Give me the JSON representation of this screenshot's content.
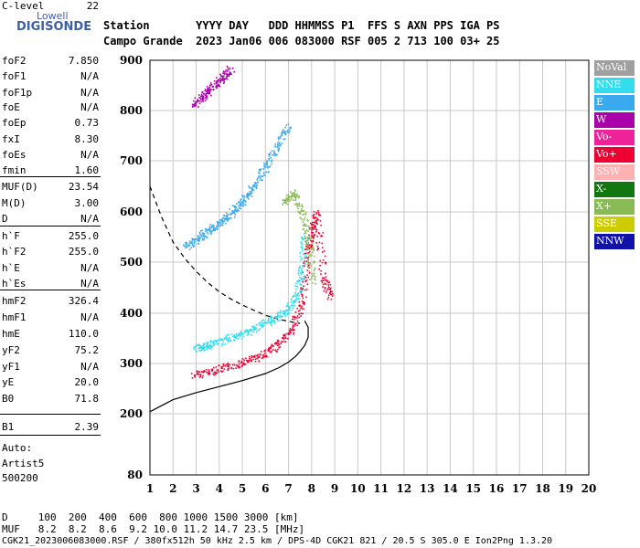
{
  "logo": {
    "top": "Lowell",
    "main": "DIGISONDE"
  },
  "header": {
    "row1": "Station       YYYY DAY   DDD HHMMSS P1  FFS S AXN PPS IGA PS",
    "row2": "Campo Grande  2023 Jan06 006 083000 RSF 005 2 713 100 03+ 25"
  },
  "params": [
    {
      "k": "foF2",
      "v": "7.850"
    },
    {
      "k": "foF1",
      "v": "N/A"
    },
    {
      "k": "foF1p",
      "v": "N/A"
    },
    {
      "k": "foE",
      "v": "N/A"
    },
    {
      "k": "foEp",
      "v": "0.73"
    },
    {
      "k": "fxI",
      "v": "8.30"
    },
    {
      "k": "foEs",
      "v": "N/A"
    },
    {
      "k": "fmin",
      "v": "1.60"
    },
    {
      "k": "MUF(D)",
      "v": "23.54"
    },
    {
      "k": "M(D)",
      "v": "3.00"
    },
    {
      "k": "D",
      "v": "N/A"
    },
    {
      "k": "h`F",
      "v": "255.0"
    },
    {
      "k": "h`F2",
      "v": "255.0"
    },
    {
      "k": "h`E",
      "v": "N/A"
    },
    {
      "k": "h`Es",
      "v": "N/A"
    },
    {
      "k": "hmF2",
      "v": "326.4"
    },
    {
      "k": "hmF1",
      "v": "N/A"
    },
    {
      "k": "hmE",
      "v": "110.0"
    },
    {
      "k": "yF2",
      "v": "75.2"
    },
    {
      "k": "yF1",
      "v": "N/A"
    },
    {
      "k": "yE",
      "v": "20.0"
    },
    {
      "k": "B0",
      "v": "71.8"
    },
    {
      "k": "B1",
      "v": "2.39"
    },
    {
      "k": "C-level",
      "v": "22"
    }
  ],
  "autoscale": [
    "Auto:",
    "Artist5",
    "500200"
  ],
  "legend": [
    {
      "label": "NoVal",
      "color": "#a0a0a0"
    },
    {
      "label": "NNE",
      "color": "#33ddee"
    },
    {
      "label": "E",
      "color": "#3aaaee"
    },
    {
      "label": "W",
      "color": "#aa00aa"
    },
    {
      "label": "Vo-",
      "color": "#ee2299"
    },
    {
      "label": "Vo+",
      "color": "#ee0033"
    },
    {
      "label": "SSW",
      "color": "#ffb0b0"
    },
    {
      "label": "X-",
      "color": "#117711"
    },
    {
      "label": "X+",
      "color": "#88bb55"
    },
    {
      "label": "SSE",
      "color": "#cccc00"
    },
    {
      "label": "NNW",
      "color": "#1111aa"
    }
  ],
  "footer": {
    "line1": "D     100  200  400  600  800 1000 1500 3000 [km]",
    "line2": "MUF   8.2  8.2  8.6  9.2 10.0 11.2 14.7 23.5 [MHz]",
    "line3": "CGK21_2023006083000.RSF / 380fx512h 50 kHz 2.5 km / DPS-4D CGK21 821 / 20.5 S 305.0 E Ion2Png 1.3.20"
  },
  "chart_data": {
    "type": "scatter",
    "title": "",
    "xlabel": "",
    "ylabel": "",
    "xlim": [
      1,
      20
    ],
    "ylim": [
      80,
      900
    ],
    "x_ticks": [
      1,
      2,
      3,
      4,
      5,
      6,
      7,
      8,
      9,
      10,
      11,
      12,
      13,
      14,
      15,
      16,
      17,
      18,
      19,
      20
    ],
    "y_ticks": [
      80,
      200,
      300,
      400,
      500,
      600,
      700,
      800,
      900
    ],
    "grid": true,
    "legend_position": "right",
    "series": [
      {
        "name": "Vo+",
        "color": "#ee0033",
        "x": [
          2.9,
          3.8,
          4.8,
          5.7,
          6.5,
          7.2,
          7.6,
          7.8,
          8.0,
          8.2,
          8.5,
          8.8
        ],
        "y": [
          278,
          287,
          300,
          314,
          336,
          372,
          430,
          520,
          560,
          600,
          470,
          430
        ]
      },
      {
        "name": "NNE",
        "color": "#33ddee",
        "x": [
          3.0,
          3.4,
          4.0,
          4.8,
          5.5,
          6.2,
          6.8,
          7.3,
          7.55,
          7.7
        ],
        "y": [
          330,
          336,
          344,
          356,
          370,
          386,
          402,
          430,
          480,
          560
        ]
      },
      {
        "name": "E",
        "color": "#3aaaee",
        "x": [
          2.5,
          3.0,
          3.5,
          4.0,
          4.5,
          5.0,
          5.5,
          6.0,
          6.5,
          7.0
        ],
        "y": [
          530,
          546,
          563,
          579,
          598,
          622,
          652,
          688,
          730,
          772
        ]
      },
      {
        "name": "X+",
        "color": "#88bb55",
        "x": [
          6.8,
          7.2,
          7.6,
          7.9,
          8.0
        ],
        "y": [
          620,
          640,
          595,
          535,
          460
        ]
      },
      {
        "name": "W",
        "color": "#aa00aa",
        "x": [
          2.9,
          3.3,
          3.7,
          4.1,
          4.5
        ],
        "y": [
          812,
          830,
          848,
          866,
          884
        ]
      }
    ],
    "lines": [
      {
        "name": "O-mode profile",
        "style": "solid",
        "x": [
          1.0,
          2.0,
          3.0,
          4.0,
          5.0,
          6.0,
          6.6,
          7.0,
          7.3,
          7.5,
          7.7,
          7.85,
          7.85,
          7.7
        ],
        "y": [
          204,
          228,
          242,
          254,
          266,
          280,
          292,
          303,
          314,
          324,
          336,
          352,
          372,
          385
        ]
      },
      {
        "name": "MUF",
        "style": "dashed",
        "x": [
          1.0,
          1.5,
          2.0,
          2.5,
          3.0,
          3.5,
          4.0,
          4.5,
          5.0,
          5.5,
          6.0,
          6.5,
          7.0,
          7.3,
          7.5
        ],
        "y": [
          650,
          590,
          540,
          508,
          482,
          460,
          442,
          428,
          416,
          406,
          396,
          389,
          384,
          381,
          380
        ]
      }
    ]
  }
}
